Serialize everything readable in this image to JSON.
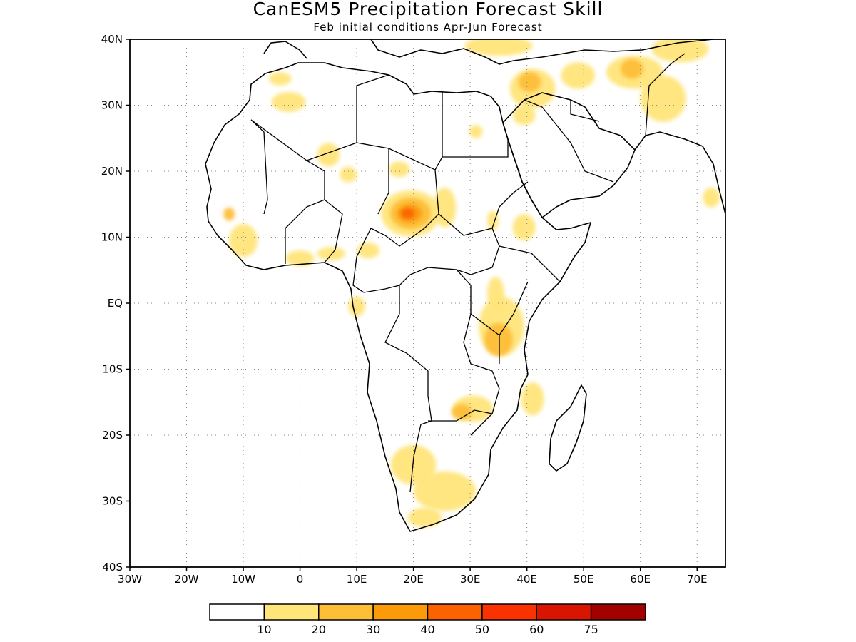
{
  "map": {
    "title": "CanESM5 Precipitation Forecast Skill",
    "subtitle": "Feb initial conditions  Apr-Jun Forecast",
    "lon_range": [
      -30,
      75
    ],
    "lat_range": [
      -40,
      40
    ],
    "grid": true,
    "lat_labels": [
      "40N",
      "30N",
      "20N",
      "10N",
      "EQ",
      "10S",
      "20S",
      "30S",
      "40S"
    ],
    "lat_values": [
      40,
      30,
      20,
      10,
      0,
      -10,
      -20,
      -30,
      -40
    ],
    "lon_labels": [
      "30W",
      "20W",
      "10W",
      "0",
      "10E",
      "20E",
      "30E",
      "40E",
      "50E",
      "60E",
      "70E"
    ],
    "lon_values": [
      -30,
      -20,
      -10,
      0,
      10,
      20,
      30,
      40,
      50,
      60,
      70
    ]
  },
  "colorbar": {
    "colors": [
      "#ffffff",
      "#ffe57a",
      "#fdbe38",
      "#fc9b0a",
      "#fb6300",
      "#fa3200",
      "#d91400",
      "#a30000"
    ],
    "labels": [
      "10",
      "20",
      "30",
      "40",
      "50",
      "60",
      "75"
    ]
  },
  "skill_regions": [
    {
      "lon": 19.5,
      "lat": 13.6,
      "rx": 5.2,
      "ry": 3.5,
      "level": 1
    },
    {
      "lon": 19.5,
      "lat": 13.6,
      "rx": 3.6,
      "ry": 2.4,
      "level": 2
    },
    {
      "lon": 19.3,
      "lat": 13.6,
      "rx": 2.2,
      "ry": 1.4,
      "level": 3
    },
    {
      "lon": 19.0,
      "lat": 13.6,
      "rx": 1.2,
      "ry": 0.8,
      "level": 4
    },
    {
      "lon": 25.5,
      "lat": 14.5,
      "rx": 2.0,
      "ry": 3.0,
      "level": 1
    },
    {
      "lon": 17.5,
      "lat": 20.3,
      "rx": 1.8,
      "ry": 1.2,
      "level": 1
    },
    {
      "lon": 35.5,
      "lat": -3.5,
      "rx": 4.0,
      "ry": 4.5,
      "level": 1
    },
    {
      "lon": 35.0,
      "lat": -5.5,
      "rx": 2.5,
      "ry": 2.5,
      "level": 2
    },
    {
      "lon": 34.5,
      "lat": 1.5,
      "rx": 1.5,
      "ry": 2.5,
      "level": 1
    },
    {
      "lon": 39.5,
      "lat": 11.5,
      "rx": 2.0,
      "ry": 2.0,
      "level": 1
    },
    {
      "lon": 34.0,
      "lat": 12.5,
      "rx": 1.0,
      "ry": 1.5,
      "level": 1
    },
    {
      "lon": 30.5,
      "lat": -16.0,
      "rx": 3.5,
      "ry": 2.0,
      "level": 1
    },
    {
      "lon": 28.5,
      "lat": -16.5,
      "rx": 1.8,
      "ry": 1.2,
      "level": 2
    },
    {
      "lon": 41.0,
      "lat": -14.5,
      "rx": 2.0,
      "ry": 2.5,
      "level": 1
    },
    {
      "lon": 20.0,
      "lat": -24.5,
      "rx": 4.0,
      "ry": 3.0,
      "level": 1
    },
    {
      "lon": 25.5,
      "lat": -28.5,
      "rx": 5.5,
      "ry": 3.0,
      "level": 1
    },
    {
      "lon": 22.0,
      "lat": -32.5,
      "rx": 3.0,
      "ry": 1.5,
      "level": 1
    },
    {
      "lon": 0.0,
      "lat": 6.8,
      "rx": 2.5,
      "ry": 1.2,
      "level": 1
    },
    {
      "lon": -10.0,
      "lat": 9.5,
      "rx": 2.5,
      "ry": 2.5,
      "level": 1
    },
    {
      "lon": -12.5,
      "lat": 13.5,
      "rx": 1.0,
      "ry": 1.0,
      "level": 2
    },
    {
      "lon": 5.5,
      "lat": 7.5,
      "rx": 2.5,
      "ry": 1.0,
      "level": 1
    },
    {
      "lon": 12.0,
      "lat": 8.0,
      "rx": 2.0,
      "ry": 1.2,
      "level": 1
    },
    {
      "lon": 10.0,
      "lat": -0.5,
      "rx": 1.5,
      "ry": 1.5,
      "level": 1
    },
    {
      "lon": 5.0,
      "lat": 22.5,
      "rx": 2.0,
      "ry": 1.8,
      "level": 1
    },
    {
      "lon": 8.5,
      "lat": 19.5,
      "rx": 1.5,
      "ry": 1.2,
      "level": 1
    },
    {
      "lon": -2.0,
      "lat": 30.5,
      "rx": 3.0,
      "ry": 1.5,
      "level": 1
    },
    {
      "lon": -3.5,
      "lat": 34.0,
      "rx": 2.0,
      "ry": 1.0,
      "level": 1
    },
    {
      "lon": 41.0,
      "lat": 32.5,
      "rx": 4.0,
      "ry": 3.0,
      "level": 1
    },
    {
      "lon": 40.5,
      "lat": 33.5,
      "rx": 2.0,
      "ry": 1.5,
      "level": 2
    },
    {
      "lon": 49.0,
      "lat": 34.5,
      "rx": 3.0,
      "ry": 2.0,
      "level": 1
    },
    {
      "lon": 59.0,
      "lat": 35.0,
      "rx": 5.0,
      "ry": 2.5,
      "level": 1
    },
    {
      "lon": 58.5,
      "lat": 35.5,
      "rx": 2.0,
      "ry": 1.5,
      "level": 2
    },
    {
      "lon": 64.0,
      "lat": 31.0,
      "rx": 4.0,
      "ry": 3.5,
      "level": 1
    },
    {
      "lon": 67.0,
      "lat": 38.5,
      "rx": 5.0,
      "ry": 2.0,
      "level": 1
    },
    {
      "lon": 35.0,
      "lat": 39.0,
      "rx": 6.0,
      "ry": 1.5,
      "level": 1
    },
    {
      "lon": 39.5,
      "lat": 28.5,
      "rx": 2.0,
      "ry": 1.5,
      "level": 1
    },
    {
      "lon": 31.0,
      "lat": 26.0,
      "rx": 1.2,
      "ry": 1.0,
      "level": 1
    },
    {
      "lon": 72.5,
      "lat": 16.0,
      "rx": 1.5,
      "ry": 1.5,
      "level": 1
    }
  ]
}
